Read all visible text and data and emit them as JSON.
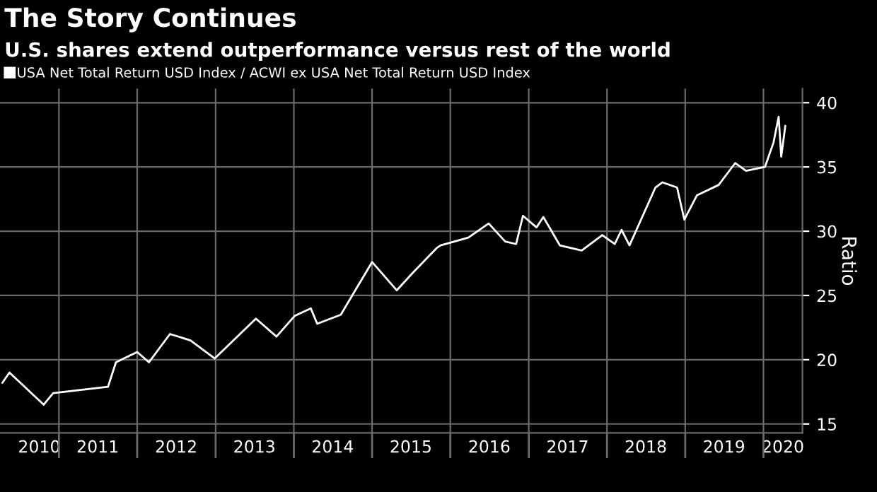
{
  "chart_data": {
    "type": "line",
    "title": "The Story Continues",
    "subtitle": "U.S. shares extend outperformance versus rest of the world",
    "ylabel": "Ratio",
    "x": [
      "2010-04-12",
      "2010-05-15",
      "2010-10-22",
      "2010-12-05",
      "2011-08-18",
      "2011-09-24",
      "2012-01-01",
      "2012-02-25",
      "2012-06-02",
      "2012-09-06",
      "2012-12-28",
      "2013-07-08",
      "2013-10-12",
      "2014-01-04",
      "2014-03-21",
      "2014-04-20",
      "2014-08-08",
      "2015-01-01",
      "2015-04-26",
      "2015-07-12",
      "2015-10-30",
      "2015-11-17",
      "2016-03-25",
      "2016-06-28",
      "2016-09-13",
      "2016-11-03",
      "2016-12-05",
      "2017-02-06",
      "2017-03-10",
      "2017-05-26",
      "2017-09-05",
      "2017-12-10",
      "2018-02-06",
      "2018-03-10",
      "2018-04-16",
      "2018-08-15",
      "2018-09-17",
      "2018-11-24",
      "2018-12-28",
      "2019-02-25",
      "2019-06-06",
      "2019-08-22",
      "2019-10-12",
      "2020-01-08",
      "2020-02-17",
      "2020-03-12",
      "2020-03-24",
      "2020-04-12"
    ],
    "series": [
      {
        "name": "USA Net Total Return USD Index / ACWI ex USA Net Total Return USD Index",
        "color": "#ffffff",
        "values": [
          18.2,
          19.0,
          16.5,
          17.4,
          17.9,
          19.8,
          20.6,
          19.8,
          22.0,
          21.5,
          20.1,
          23.2,
          21.8,
          23.4,
          24.0,
          22.8,
          23.5,
          27.6,
          25.4,
          26.8,
          28.7,
          28.9,
          29.5,
          30.6,
          29.2,
          29.0,
          31.2,
          30.3,
          31.1,
          28.9,
          28.5,
          29.7,
          29.0,
          30.1,
          28.9,
          33.4,
          33.8,
          33.4,
          30.9,
          32.8,
          33.6,
          35.3,
          34.7,
          35.0,
          36.9,
          38.9,
          35.8,
          38.2
        ]
      }
    ],
    "xlim": [
      "2010-04-01",
      "2020-07-01"
    ],
    "xticks": [
      {
        "value": "2010-10-01",
        "label": "2010"
      },
      {
        "value": "2011-01-01",
        "label": null
      },
      {
        "value": "2011-07-01",
        "label": "2011"
      },
      {
        "value": "2012-01-01",
        "label": null
      },
      {
        "value": "2012-07-01",
        "label": "2012"
      },
      {
        "value": "2013-01-01",
        "label": null
      },
      {
        "value": "2013-07-01",
        "label": "2013"
      },
      {
        "value": "2014-01-01",
        "label": null
      },
      {
        "value": "2014-07-01",
        "label": "2014"
      },
      {
        "value": "2015-01-01",
        "label": null
      },
      {
        "value": "2015-07-01",
        "label": "2015"
      },
      {
        "value": "2016-01-01",
        "label": null
      },
      {
        "value": "2016-07-01",
        "label": "2016"
      },
      {
        "value": "2017-01-01",
        "label": null
      },
      {
        "value": "2017-07-01",
        "label": "2017"
      },
      {
        "value": "2018-01-01",
        "label": null
      },
      {
        "value": "2018-07-01",
        "label": "2018"
      },
      {
        "value": "2019-01-01",
        "label": null
      },
      {
        "value": "2019-07-01",
        "label": "2019"
      },
      {
        "value": "2020-01-01",
        "label": null
      },
      {
        "value": "2020-04-01",
        "label": "2020"
      }
    ],
    "ylim": [
      14.3,
      41.1
    ],
    "yticks": [
      15,
      20,
      25,
      30,
      35,
      40
    ],
    "grid": true,
    "legend": "top left",
    "line_style": "solid",
    "marker": "none"
  }
}
